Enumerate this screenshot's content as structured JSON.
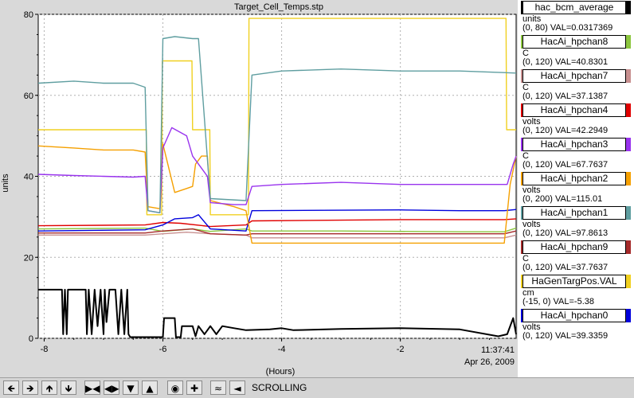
{
  "chart_data": {
    "type": "line",
    "title": "Target_Cell_Temps.stp",
    "xlabel": "(Hours)",
    "ylabel": "units",
    "xlim": [
      -8.1,
      -0.05
    ],
    "ylim": [
      0,
      80
    ],
    "x_ticks": [
      -8,
      -6,
      -4,
      -2
    ],
    "y_ticks": [
      0,
      20,
      40,
      60,
      80
    ],
    "grid": true,
    "end_time": "11:37:41",
    "end_date": "Apr 26, 2009",
    "series": [
      {
        "name": "hac_bcm_average",
        "color": "#000000",
        "unit": "units",
        "range": "(0, 80)",
        "value": "VAL=0.0317369",
        "x": [
          -8.1,
          -7.7,
          -7.68,
          -7.65,
          -7.62,
          -7.6,
          -7.3,
          -7.28,
          -7.25,
          -7.2,
          -7.15,
          -7.1,
          -7.05,
          -7.0,
          -6.98,
          -6.95,
          -6.9,
          -6.8,
          -6.75,
          -6.7,
          -6.65,
          -6.6,
          -6.58,
          -6.55,
          -6.3,
          -6.0,
          -5.98,
          -5.8,
          -5.78,
          -5.7,
          -5.68,
          -5.5,
          -5.45,
          -5.4,
          -5.3,
          -5.2,
          -5.1,
          -5.0,
          -4.8,
          -4.6,
          -4.2,
          -4.0,
          -3.8,
          -3.0,
          -2.0,
          -1.0,
          -0.35,
          -0.2,
          -0.1,
          -0.05
        ],
        "y": [
          12,
          12,
          1,
          12,
          1,
          12,
          12,
          1,
          12,
          1,
          12,
          3,
          12,
          1,
          12,
          4,
          12,
          12,
          1,
          12,
          1,
          12,
          1,
          0.3,
          0.3,
          0.3,
          5,
          5,
          0.3,
          0.3,
          3,
          3,
          0.5,
          3,
          1,
          3,
          1,
          3,
          2.5,
          2,
          2.2,
          2.5,
          2,
          2.3,
          2.5,
          2.2,
          0.5,
          1,
          5,
          1
        ]
      },
      {
        "name": "HacAi_hpchan8",
        "color": "#8cc63f",
        "unit": "C",
        "range": "(0, 120)",
        "value": "VAL=40.8301",
        "x": [
          -8.1,
          -6.3,
          -6.0,
          -5.5,
          -5.2,
          -4.6,
          -4.5,
          -3.0,
          -1.0,
          -0.25,
          -0.05
        ],
        "y": [
          27.0,
          27.2,
          26.4,
          27.0,
          26.4,
          27.0,
          26.5,
          26.5,
          26.3,
          26.3,
          27.2
        ]
      },
      {
        "name": "HacAi_hpchan7",
        "color": "#c89090",
        "unit": "C",
        "range": "(0, 120)",
        "value": "VAL=37.1387",
        "x": [
          -8.1,
          -6.3,
          -6.0,
          -5.6,
          -5.2,
          -4.6,
          -4.5,
          -2.0,
          -0.25,
          -0.05
        ],
        "y": [
          25.5,
          25.5,
          25.8,
          26.2,
          25.8,
          25.5,
          24.8,
          24.8,
          24.8,
          25.5
        ]
      },
      {
        "name": "HacAi_hpchan4",
        "color": "#e00000",
        "unit": "volts",
        "range": "(0, 120)",
        "value": "VAL=42.2949",
        "x": [
          -8.1,
          -6.3,
          -6.0,
          -5.7,
          -5.2,
          -4.6,
          -4.5,
          -2.0,
          -0.25,
          -0.05
        ],
        "y": [
          27.8,
          28.0,
          28.6,
          28.4,
          27.6,
          28.0,
          29.0,
          29.3,
          29.3,
          29.5
        ]
      },
      {
        "name": "HacAi_hpchan3",
        "color": "#9933ee",
        "unit": "C",
        "range": "(0, 120)",
        "value": "VAL=67.7637",
        "x": [
          -8.1,
          -7.5,
          -7.0,
          -6.5,
          -6.3,
          -6.25,
          -6.05,
          -6.0,
          -5.85,
          -5.6,
          -5.5,
          -5.35,
          -5.25,
          -5.2,
          -4.8,
          -4.6,
          -4.5,
          -4.0,
          -3.0,
          -2.0,
          -1.0,
          -0.2,
          -0.1,
          -0.05
        ],
        "y": [
          40.5,
          40.2,
          40.0,
          39.8,
          40.0,
          31.5,
          31.0,
          47.0,
          52.0,
          50.0,
          45.0,
          42.0,
          40.0,
          33.5,
          33.0,
          33.0,
          37.5,
          38.0,
          38.5,
          38.0,
          38.0,
          38.0,
          43.0,
          45.0
        ]
      },
      {
        "name": "HacAi_hpchan2",
        "color": "#f5a000",
        "unit": "volts",
        "range": "(0, 200)",
        "value": "VAL=115.01",
        "x": [
          -8.1,
          -7.5,
          -7.0,
          -6.5,
          -6.3,
          -6.25,
          -6.05,
          -6.0,
          -5.8,
          -5.6,
          -5.5,
          -5.45,
          -5.35,
          -5.25,
          -5.2,
          -4.8,
          -4.6,
          -4.5,
          -4.0,
          -2.0,
          -0.25,
          -0.15,
          -0.05
        ],
        "y": [
          47.5,
          47.0,
          46.5,
          46.5,
          46.0,
          32.5,
          32.0,
          48.0,
          36.0,
          37.0,
          37.5,
          43.0,
          45.0,
          45.0,
          34.0,
          32.5,
          31.5,
          23.5,
          23.5,
          23.5,
          23.5,
          38.0,
          45.0
        ]
      },
      {
        "name": "HacAi_hpchan1",
        "color": "#5f9ea0",
        "unit": "volts",
        "range": "(0, 120)",
        "value": "VAL=97.8613",
        "x": [
          -8.1,
          -7.5,
          -7.0,
          -6.5,
          -6.3,
          -6.25,
          -6.05,
          -6.0,
          -5.8,
          -5.5,
          -5.4,
          -5.2,
          -4.6,
          -4.5,
          -4.0,
          -3.0,
          -2.0,
          -1.0,
          -0.05
        ],
        "y": [
          63.0,
          63.5,
          63.0,
          63.0,
          62.0,
          31.5,
          31.0,
          74.0,
          74.5,
          74.0,
          74.0,
          34.5,
          34.0,
          65.0,
          66.0,
          66.5,
          66.0,
          66.0,
          65.5
        ]
      },
      {
        "name": "HacAi_hpchan9",
        "color": "#a52a2a",
        "unit": "C",
        "range": "(0, 120)",
        "value": "VAL=37.7637",
        "x": [
          -8.1,
          -6.3,
          -6.0,
          -5.5,
          -5.2,
          -4.6,
          -4.5,
          -2.0,
          -0.25,
          -0.05
        ],
        "y": [
          26.0,
          26.0,
          26.5,
          27.0,
          25.8,
          25.5,
          25.8,
          25.8,
          25.8,
          26.5
        ]
      },
      {
        "name": "HaGenTargPos.VAL",
        "color": "#f0d020",
        "unit": "cm",
        "range": "(-15, 0)",
        "value": "VAL=-5.38",
        "x": [
          -8.1,
          -6.28,
          -6.27,
          -6.02,
          -6.01,
          -5.51,
          -5.5,
          -5.21,
          -5.2,
          -4.56,
          -4.55,
          -0.22,
          -0.21,
          -0.05
        ],
        "y": [
          51.5,
          51.5,
          30.5,
          30.5,
          68.5,
          68.5,
          51.5,
          51.5,
          30.5,
          30.5,
          79.0,
          79.0,
          51.5,
          51.5
        ]
      },
      {
        "name": "HacAi_hpchan0",
        "color": "#0000dd",
        "unit": "volts",
        "range": "(0, 120)",
        "value": "VAL=39.3359",
        "x": [
          -8.1,
          -6.3,
          -6.0,
          -5.8,
          -5.5,
          -5.4,
          -5.2,
          -4.6,
          -4.5,
          -2.0,
          -1.0,
          -0.25,
          -0.05
        ],
        "y": [
          26.5,
          26.8,
          28.0,
          29.5,
          29.8,
          30.5,
          27.0,
          26.5,
          31.5,
          31.7,
          31.5,
          31.5,
          31.8
        ]
      }
    ]
  },
  "toolbar": {
    "buttons": [
      "arrow-left",
      "arrow-right",
      "arrow-up",
      "arrow-down",
      "expand-horizontal",
      "compress-horizontal",
      "expand-vertical",
      "compress-vertical",
      "record",
      "add",
      "rescale",
      "marker"
    ],
    "status": "SCROLLING"
  }
}
